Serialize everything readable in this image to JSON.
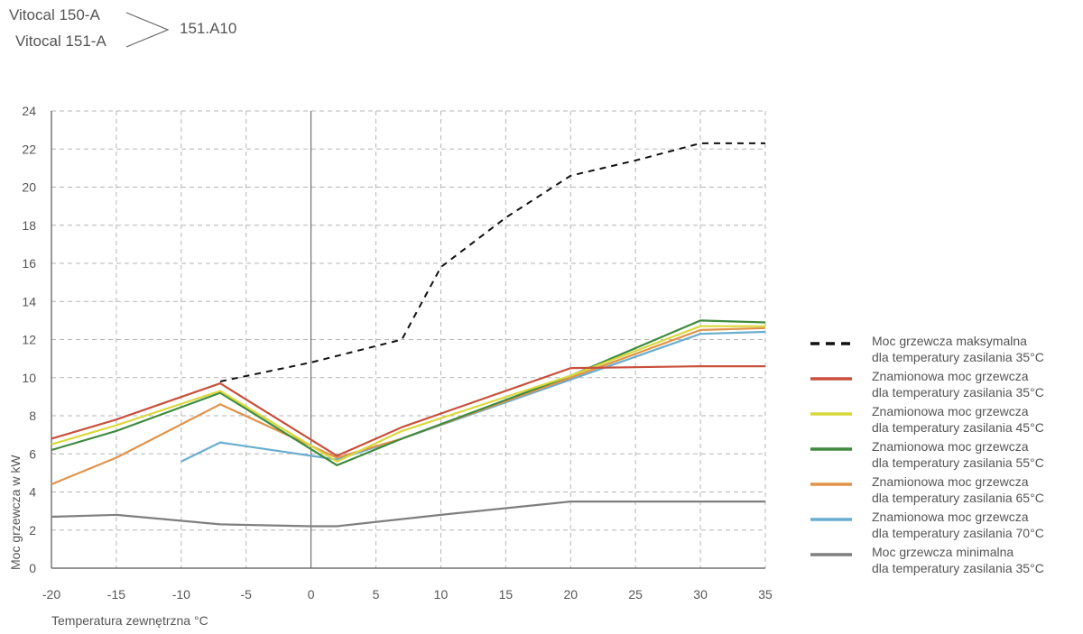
{
  "header": {
    "model_1": "Vitocal 150-A",
    "model_2": "Vitocal 151-A",
    "model_code": "151.A10"
  },
  "chart_data": {
    "type": "line",
    "xlabel": "Temperatura zewnętrzna °C",
    "ylabel": "Moc grzewcza w kW",
    "xlim": [
      -20,
      35
    ],
    "ylim": [
      0,
      24
    ],
    "x_ticks": [
      -20,
      -15,
      -10,
      -5,
      0,
      5,
      10,
      15,
      20,
      25,
      30,
      35
    ],
    "y_ticks": [
      0,
      2,
      4,
      6,
      8,
      10,
      12,
      14,
      16,
      18,
      20,
      22,
      24
    ],
    "grid": true,
    "legend_position": "right",
    "series": [
      {
        "id": "max35",
        "legend_line1": "Moc grzewcza maksymalna",
        "legend_line2": "dla temperatury zasilania 35°C",
        "color": "#111111",
        "dashed": true,
        "points": [
          [
            -7,
            9.8
          ],
          [
            0,
            10.8
          ],
          [
            7,
            12.0
          ],
          [
            10,
            15.8
          ],
          [
            15,
            18.4
          ],
          [
            20,
            20.6
          ],
          [
            25,
            21.4
          ],
          [
            30,
            22.3
          ],
          [
            35,
            22.3
          ]
        ]
      },
      {
        "id": "nom35",
        "legend_line1": "Znamionowa moc grzewcza",
        "legend_line2": "dla temperatury zasilania 35°C",
        "color": "#c8503c",
        "dashed": false,
        "points": [
          [
            -20,
            6.8
          ],
          [
            -15,
            7.8
          ],
          [
            -7,
            9.7
          ],
          [
            2,
            5.9
          ],
          [
            7,
            7.4
          ],
          [
            20,
            10.5
          ],
          [
            30,
            10.6
          ],
          [
            35,
            10.6
          ]
        ]
      },
      {
        "id": "nom45",
        "legend_line1": "Znamionowa moc grzewcza",
        "legend_line2": "dla temperatury zasilania 45°C",
        "color": "#d9d83c",
        "dashed": false,
        "points": [
          [
            -20,
            6.5
          ],
          [
            -15,
            7.5
          ],
          [
            -7,
            9.3
          ],
          [
            2,
            5.6
          ],
          [
            7,
            7.2
          ],
          [
            20,
            10.1
          ],
          [
            30,
            12.7
          ],
          [
            35,
            12.7
          ]
        ]
      },
      {
        "id": "nom55",
        "legend_line1": "Znamionowa moc grzewcza",
        "legend_line2": "dla temperatury zasilania 55°C",
        "color": "#3f8a3f",
        "dashed": false,
        "points": [
          [
            -20,
            6.2
          ],
          [
            -15,
            7.2
          ],
          [
            -7,
            9.2
          ],
          [
            2,
            5.4
          ],
          [
            7,
            6.8
          ],
          [
            20,
            10.1
          ],
          [
            30,
            13.0
          ],
          [
            35,
            12.9
          ]
        ]
      },
      {
        "id": "nom65",
        "legend_line1": "Znamionowa moc grzewcza",
        "legend_line2": "dla temperatury zasilania 65°C",
        "color": "#e0934a",
        "dashed": false,
        "points": [
          [
            -20,
            4.4
          ],
          [
            -15,
            5.8
          ],
          [
            -7,
            8.6
          ],
          [
            2,
            5.8
          ],
          [
            7,
            6.8
          ],
          [
            20,
            10.0
          ],
          [
            30,
            12.5
          ],
          [
            35,
            12.6
          ]
        ]
      },
      {
        "id": "nom70",
        "legend_line1": "Znamionowa moc grzewcza",
        "legend_line2": "dla temperatury zasilania 70°C",
        "color": "#6aadcf",
        "dashed": false,
        "points": [
          [
            -10,
            5.6
          ],
          [
            -7,
            6.6
          ],
          [
            0,
            5.9
          ],
          [
            2,
            5.7
          ],
          [
            7,
            6.8
          ],
          [
            20,
            9.9
          ],
          [
            30,
            12.3
          ],
          [
            35,
            12.4
          ]
        ]
      },
      {
        "id": "min35",
        "legend_line1": "Moc grzewcza minimalna",
        "legend_line2": "dla temperatury zasilania 35°C",
        "color": "#7f7f7f",
        "dashed": false,
        "points": [
          [
            -20,
            2.7
          ],
          [
            -15,
            2.8
          ],
          [
            -7,
            2.3
          ],
          [
            0,
            2.2
          ],
          [
            2,
            2.2
          ],
          [
            10,
            2.8
          ],
          [
            20,
            3.5
          ],
          [
            25,
            3.5
          ],
          [
            30,
            3.5
          ],
          [
            35,
            3.5
          ]
        ]
      }
    ]
  }
}
